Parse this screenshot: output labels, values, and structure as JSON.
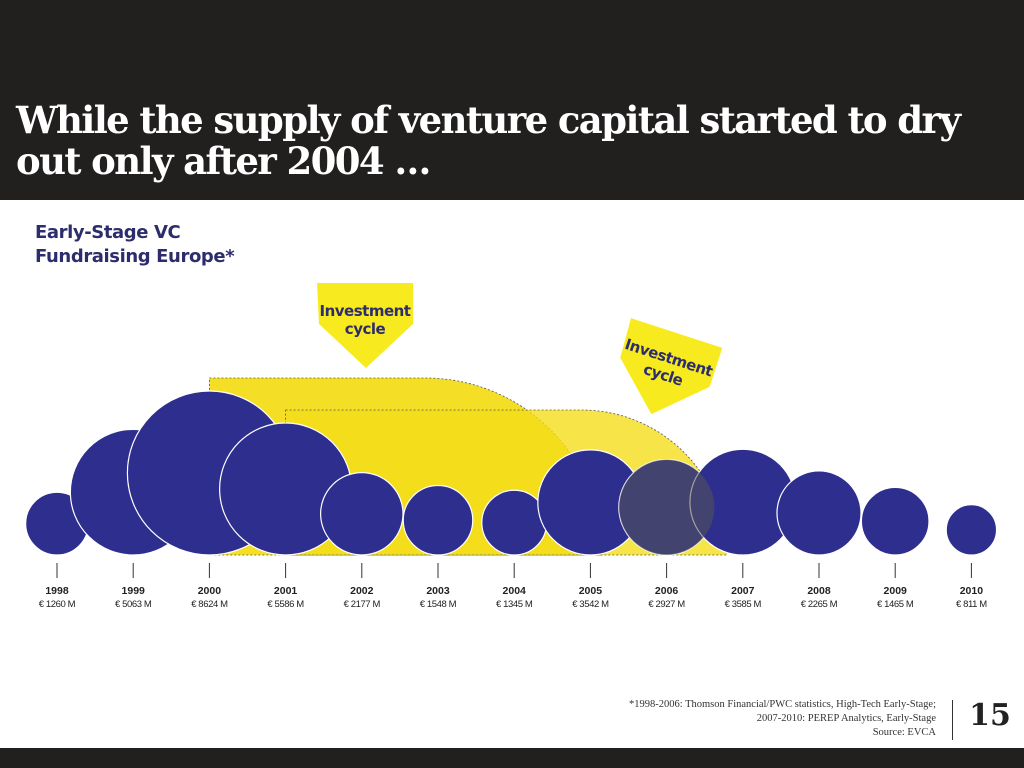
{
  "slide": {
    "title": "While the supply of venture capital started to dry out only after 2004 …",
    "subtitle_line1": "Early-Stage VC",
    "subtitle_line2": "Fundraising Europe*",
    "footnote_line1": "*1998-2006: Thomson Financial/PWC statistics, High-Tech Early-Stage;",
    "footnote_line2": "2007-2010: PEREP Analytics, Early-Stage",
    "footnote_line3": "Source: EVCA",
    "page_number": "15"
  },
  "colors": {
    "header_bg": "#221f1f",
    "bubble": "#2e2e8f",
    "cycle_band": "#f4dd1a",
    "cycle_arrow": "#f7eb1f",
    "subtitle_text": "#2d2d6e"
  },
  "chart_data": {
    "type": "bubble",
    "title": "Early-Stage VC Fundraising Europe*",
    "unit": "€ M",
    "categories": [
      "1998",
      "1999",
      "2000",
      "2001",
      "2002",
      "2003",
      "2004",
      "2005",
      "2006",
      "2007",
      "2008",
      "2009",
      "2010"
    ],
    "values": [
      1260,
      5063,
      8624,
      5586,
      2177,
      1548,
      1345,
      3542,
      2927,
      3585,
      2265,
      1465,
      811
    ],
    "value_labels": [
      "€ 1260 M",
      "€ 5063 M",
      "€ 8624 M",
      "€ 5586 M",
      "€ 2177 M",
      "€ 1548 M",
      "€ 1345 M",
      "€ 3542 M",
      "€ 2927 M",
      "€ 3585 M",
      "€ 2265 M",
      "€ 1465 M",
      "€ 811 M"
    ],
    "annotations": [
      {
        "label_line1": "Investment",
        "label_line2": "cycle",
        "from": "2000",
        "to": "2005"
      },
      {
        "label_line1": "Investment",
        "label_line2": "cycle",
        "from": "2001",
        "to": "2006"
      }
    ]
  }
}
